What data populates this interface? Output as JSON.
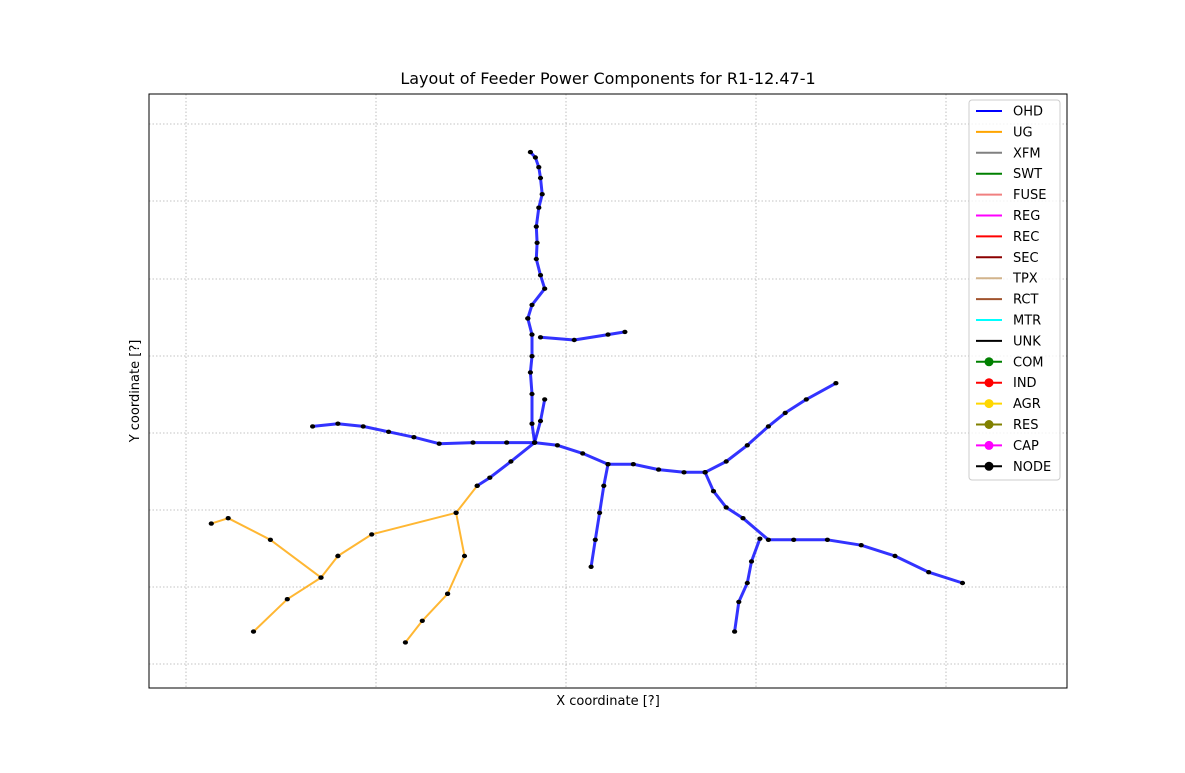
{
  "chart_data": {
    "type": "scatter",
    "title": "Layout of Feeder Power Components for R1-12.47-1",
    "xlabel": "X coordinate [?]",
    "ylabel": "Y coordinate [?]",
    "xlim": [
      0,
      1
    ],
    "ylim": [
      0,
      1
    ],
    "grid": true,
    "ticks_labeled": false,
    "legend_position": "upper right",
    "legend": [
      {
        "label": "OHD",
        "color": "#0000ff",
        "marker": "line"
      },
      {
        "label": "UG",
        "color": "#ffa500",
        "marker": "line"
      },
      {
        "label": "XFM",
        "color": "#808080",
        "marker": "line"
      },
      {
        "label": "SWT",
        "color": "#008000",
        "marker": "line"
      },
      {
        "label": "FUSE",
        "color": "#f08080",
        "marker": "line"
      },
      {
        "label": "REG",
        "color": "#ff00ff",
        "marker": "line"
      },
      {
        "label": "REC",
        "color": "#ff0000",
        "marker": "line"
      },
      {
        "label": "SEC",
        "color": "#8b0000",
        "marker": "line"
      },
      {
        "label": "TPX",
        "color": "#d2b48c",
        "marker": "line"
      },
      {
        "label": "RCT",
        "color": "#a0522d",
        "marker": "line"
      },
      {
        "label": "MTR",
        "color": "#00ffff",
        "marker": "line"
      },
      {
        "label": "UNK",
        "color": "#000000",
        "marker": "line"
      },
      {
        "label": "COM",
        "color": "#008000",
        "marker": "dot"
      },
      {
        "label": "IND",
        "color": "#ff0000",
        "marker": "dot"
      },
      {
        "label": "AGR",
        "color": "#ffd700",
        "marker": "dot"
      },
      {
        "label": "RES",
        "color": "#808000",
        "marker": "dot"
      },
      {
        "label": "CAP",
        "color": "#ff00ff",
        "marker": "dot"
      },
      {
        "label": "NODE",
        "color": "#000000",
        "marker": "dot"
      }
    ],
    "trunks": [
      {
        "class": "OHD",
        "points": [
          [
            0.408,
            0.948
          ],
          [
            0.414,
            0.938
          ],
          [
            0.418,
            0.92
          ],
          [
            0.42,
            0.9
          ],
          [
            0.422,
            0.87
          ],
          [
            0.418,
            0.845
          ],
          [
            0.415,
            0.81
          ],
          [
            0.416,
            0.78
          ],
          [
            0.415,
            0.75
          ],
          [
            0.42,
            0.72
          ],
          [
            0.425,
            0.695
          ],
          [
            0.41,
            0.665
          ],
          [
            0.405,
            0.64
          ]
        ]
      },
      {
        "class": "OHD",
        "points": [
          [
            0.405,
            0.64
          ],
          [
            0.41,
            0.61
          ],
          [
            0.41,
            0.57
          ],
          [
            0.408,
            0.54
          ],
          [
            0.41,
            0.5
          ],
          [
            0.41,
            0.445
          ],
          [
            0.413,
            0.41
          ]
        ]
      },
      {
        "class": "OHD",
        "points": [
          [
            0.413,
            0.41
          ],
          [
            0.385,
            0.375
          ],
          [
            0.36,
            0.345
          ],
          [
            0.345,
            0.33
          ]
        ]
      },
      {
        "class": "OHD",
        "points": [
          [
            0.413,
            0.41
          ],
          [
            0.38,
            0.41
          ],
          [
            0.34,
            0.41
          ],
          [
            0.3,
            0.408
          ],
          [
            0.27,
            0.42
          ],
          [
            0.24,
            0.43
          ],
          [
            0.21,
            0.44
          ],
          [
            0.18,
            0.445
          ],
          [
            0.15,
            0.44
          ]
        ]
      },
      {
        "class": "OHD",
        "points": [
          [
            0.413,
            0.41
          ],
          [
            0.44,
            0.405
          ],
          [
            0.47,
            0.39
          ],
          [
            0.5,
            0.37
          ],
          [
            0.53,
            0.37
          ],
          [
            0.56,
            0.36
          ],
          [
            0.59,
            0.355
          ],
          [
            0.615,
            0.355
          ]
        ]
      },
      {
        "class": "OHD",
        "points": [
          [
            0.615,
            0.355
          ],
          [
            0.64,
            0.375
          ],
          [
            0.665,
            0.405
          ],
          [
            0.69,
            0.44
          ],
          [
            0.71,
            0.465
          ],
          [
            0.735,
            0.49
          ],
          [
            0.77,
            0.52
          ]
        ]
      },
      {
        "class": "OHD",
        "points": [
          [
            0.615,
            0.355
          ],
          [
            0.625,
            0.32
          ],
          [
            0.64,
            0.29
          ],
          [
            0.66,
            0.27
          ],
          [
            0.69,
            0.23
          ],
          [
            0.72,
            0.23
          ],
          [
            0.76,
            0.23
          ],
          [
            0.8,
            0.22
          ],
          [
            0.84,
            0.2
          ],
          [
            0.88,
            0.17
          ],
          [
            0.92,
            0.15
          ]
        ]
      },
      {
        "class": "OHD",
        "points": [
          [
            0.68,
            0.232
          ],
          [
            0.67,
            0.19
          ],
          [
            0.665,
            0.15
          ],
          [
            0.655,
            0.115
          ],
          [
            0.65,
            0.06
          ]
        ]
      },
      {
        "class": "OHD",
        "points": [
          [
            0.5,
            0.37
          ],
          [
            0.495,
            0.33
          ],
          [
            0.49,
            0.28
          ],
          [
            0.485,
            0.23
          ],
          [
            0.48,
            0.18
          ]
        ]
      },
      {
        "class": "OHD",
        "points": [
          [
            0.413,
            0.41
          ],
          [
            0.42,
            0.45
          ],
          [
            0.425,
            0.49
          ]
        ]
      },
      {
        "class": "OHD",
        "points": [
          [
            0.42,
            0.605
          ],
          [
            0.46,
            0.6
          ],
          [
            0.5,
            0.61
          ],
          [
            0.52,
            0.615
          ]
        ]
      },
      {
        "class": "UG",
        "points": [
          [
            0.345,
            0.33
          ],
          [
            0.32,
            0.28
          ],
          [
            0.22,
            0.24
          ],
          [
            0.18,
            0.2
          ]
        ]
      },
      {
        "class": "UG",
        "points": [
          [
            0.32,
            0.28
          ],
          [
            0.33,
            0.2
          ],
          [
            0.31,
            0.13
          ]
        ]
      },
      {
        "class": "UG",
        "points": [
          [
            0.18,
            0.2
          ],
          [
            0.16,
            0.16
          ],
          [
            0.12,
            0.12
          ],
          [
            0.08,
            0.06
          ]
        ]
      },
      {
        "class": "UG",
        "points": [
          [
            0.31,
            0.13
          ],
          [
            0.28,
            0.08
          ],
          [
            0.26,
            0.04
          ]
        ]
      },
      {
        "class": "UG",
        "points": [
          [
            0.16,
            0.16
          ],
          [
            0.1,
            0.23
          ],
          [
            0.05,
            0.27
          ],
          [
            0.03,
            0.26
          ]
        ]
      }
    ]
  }
}
